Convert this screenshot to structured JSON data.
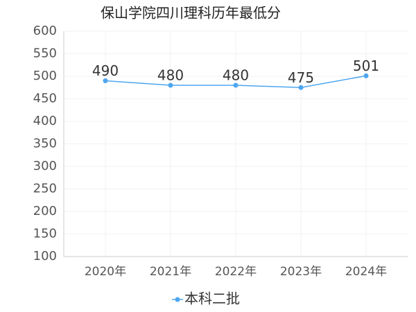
{
  "chart_data": {
    "type": "line",
    "title": "保山学院四川理科历年最低分",
    "categories": [
      "2020年",
      "2021年",
      "2022年",
      "2023年",
      "2024年"
    ],
    "series": [
      {
        "name": "本科二批",
        "color": "#4da6f0",
        "values": [
          490,
          480,
          480,
          475,
          501
        ]
      }
    ],
    "ylim": [
      100,
      600
    ],
    "yticks": [
      100,
      150,
      200,
      250,
      300,
      350,
      400,
      450,
      500,
      550,
      600
    ],
    "grid": true,
    "legend": "bottom"
  }
}
